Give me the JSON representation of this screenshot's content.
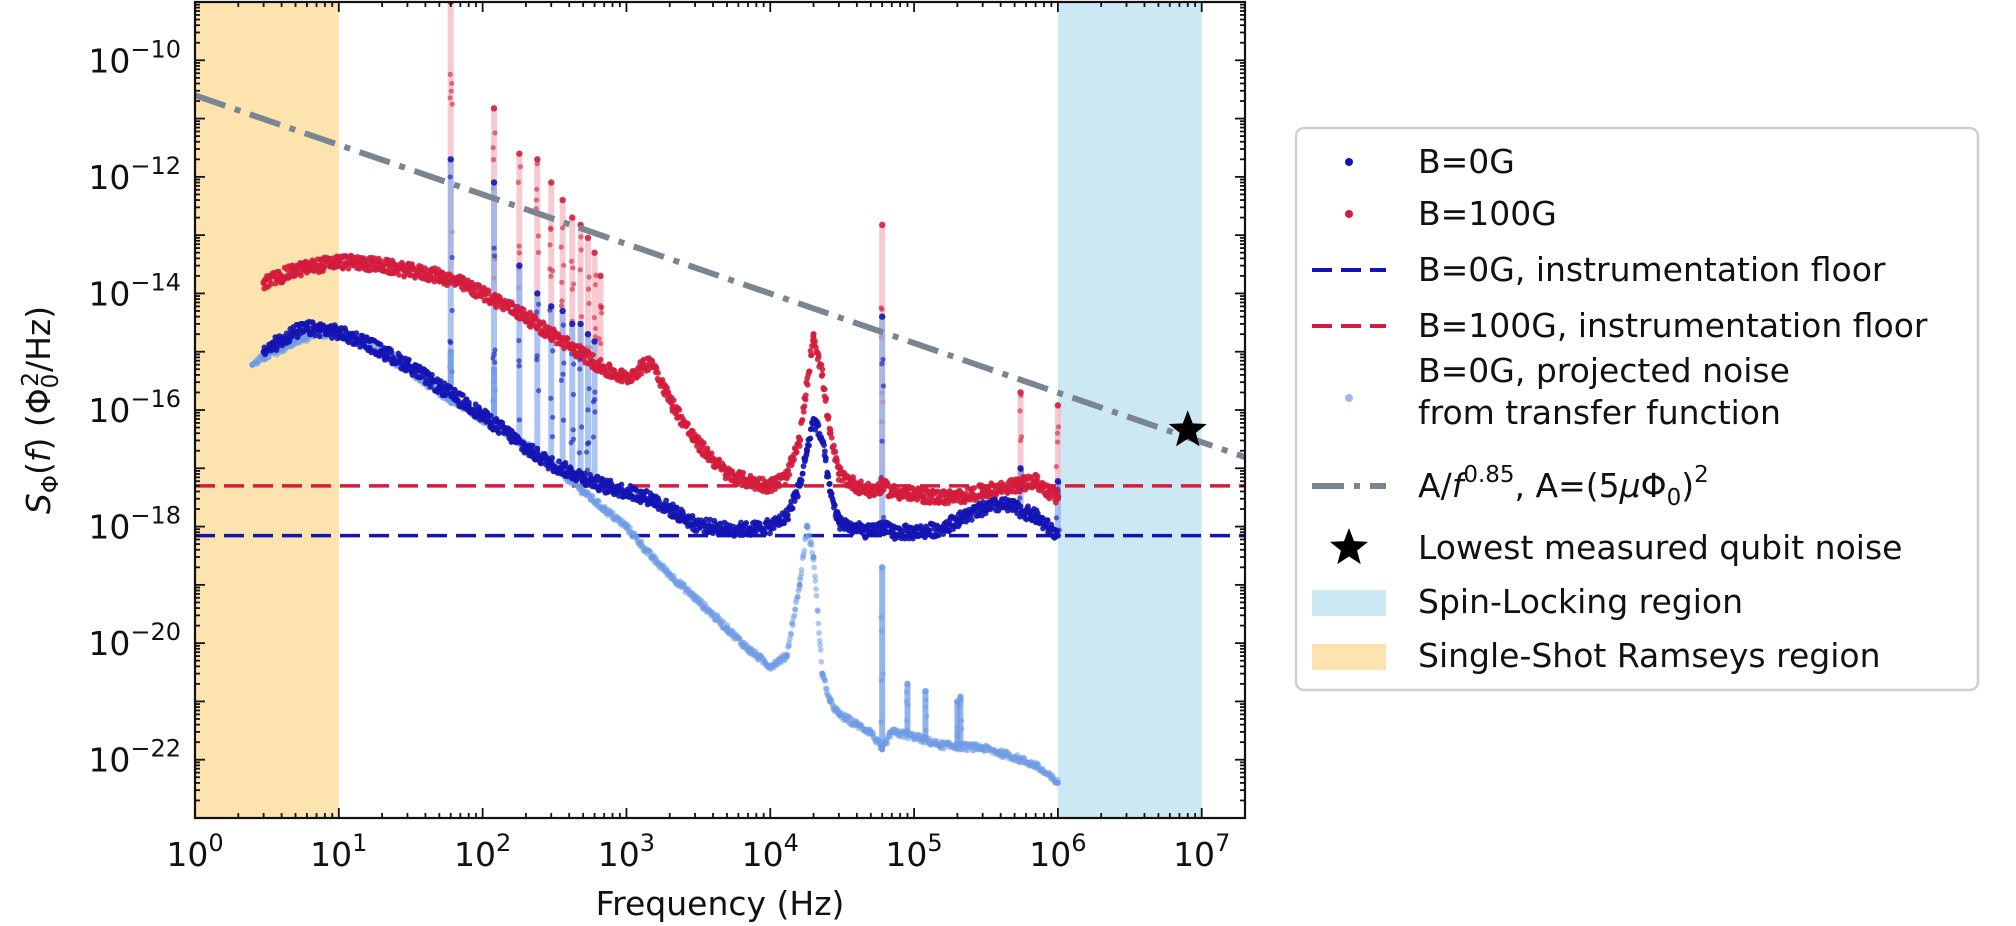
{
  "chart_data": {
    "type": "scatter",
    "title": "",
    "xlabel": "Frequency (Hz)",
    "ylabel": "S_Φ(f) (Φ_0^2/Hz)",
    "xscale": "log",
    "yscale": "log",
    "xlim": [
      1,
      20000000
    ],
    "ylim": [
      1e-23,
      1e-09
    ],
    "grid": false,
    "legend_position": "right-outside",
    "x_tick_labels": [
      {
        "value": 1,
        "label": "10",
        "exp": "0"
      },
      {
        "value": 10,
        "label": "10",
        "exp": "1"
      },
      {
        "value": 100,
        "label": "10",
        "exp": "2"
      },
      {
        "value": 1000,
        "label": "10",
        "exp": "3"
      },
      {
        "value": 10000,
        "label": "10",
        "exp": "4"
      },
      {
        "value": 100000,
        "label": "10",
        "exp": "5"
      },
      {
        "value": 1000000,
        "label": "10",
        "exp": "6"
      },
      {
        "value": 10000000,
        "label": "10",
        "exp": "7"
      }
    ],
    "y_tick_labels": [
      {
        "value": 1e-10,
        "label": "10",
        "exp": "−10"
      },
      {
        "value": 1e-12,
        "label": "10",
        "exp": "−12"
      },
      {
        "value": 1e-14,
        "label": "10",
        "exp": "−14"
      },
      {
        "value": 1e-16,
        "label": "10",
        "exp": "−16"
      },
      {
        "value": 1e-18,
        "label": "10",
        "exp": "−18"
      },
      {
        "value": 1e-20,
        "label": "10",
        "exp": "−20"
      },
      {
        "value": 1e-22,
        "label": "10",
        "exp": "−22"
      }
    ],
    "regions": [
      {
        "name": "Single-Shot Ramseys region",
        "x": [
          1,
          10
        ],
        "color": "#fde3ad"
      },
      {
        "name": "Spin-Locking region",
        "x": [
          1000000,
          10000000
        ],
        "color": "#cde8f5"
      }
    ],
    "colors": {
      "b0": "#1414b4",
      "b100": "#d41c3c",
      "projected": "#6f9be6",
      "fit": "#7a8591",
      "b100_spike": "#f4b8c2",
      "b0_spike": "#8fb0ec"
    },
    "series": [
      {
        "name": "B=0G",
        "style": "points",
        "x": [
          3,
          4,
          5,
          6,
          8,
          10,
          15,
          20,
          30,
          50,
          80,
          100,
          150,
          200,
          300,
          500,
          700,
          1000,
          1500,
          2000,
          3000,
          5000,
          7000,
          10000,
          13000,
          16000,
          18000,
          20000,
          23000,
          26000,
          30000,
          40000,
          50000,
          60000,
          70000,
          100000,
          150000,
          200000,
          300000,
          400000,
          500000,
          700000,
          1000000
        ],
        "y": [
          1e-15,
          1.6e-15,
          2.2e-15,
          2.5e-15,
          2.4e-15,
          2.1e-15,
          1.5e-15,
          1e-15,
          6e-16,
          2.5e-16,
          1.2e-16,
          8e-17,
          4e-17,
          2.2e-17,
          1.2e-17,
          7e-18,
          5e-18,
          4e-18,
          3e-18,
          2e-18,
          1.1e-18,
          9e-19,
          9e-19,
          1e-18,
          1.5e-18,
          5e-18,
          2e-17,
          7e-17,
          3e-17,
          4e-18,
          1.2e-18,
          9e-19,
          8e-19,
          1e-18,
          8e-19,
          8e-19,
          9e-19,
          1.3e-18,
          2e-18,
          2.4e-18,
          2.1e-18,
          1.5e-18,
          7e-19
        ]
      },
      {
        "name": "B=100G",
        "style": "points",
        "x": [
          3,
          4,
          5,
          7,
          10,
          15,
          20,
          30,
          50,
          70,
          100,
          150,
          200,
          300,
          500,
          700,
          1000,
          1500,
          2000,
          3000,
          5000,
          7000,
          10000,
          13000,
          16000,
          20000,
          23000,
          26000,
          30000,
          40000,
          50000,
          60000,
          70000,
          100000,
          150000,
          200000,
          300000,
          500000,
          700000,
          1000000
        ],
        "y": [
          1.5e-14,
          2e-14,
          2.5e-14,
          3e-14,
          3.5e-14,
          3.3e-14,
          3e-14,
          2.5e-14,
          2e-14,
          1.5e-14,
          1e-14,
          6e-15,
          4e-15,
          2e-15,
          9e-16,
          5e-16,
          3.5e-16,
          7e-16,
          1.5e-16,
          3e-17,
          8e-18,
          6e-18,
          5e-18,
          7e-18,
          3e-17,
          2e-15,
          4e-16,
          4e-17,
          8e-18,
          5e-18,
          4e-18,
          5e-18,
          4e-18,
          3.5e-18,
          3.2e-18,
          3.2e-18,
          4e-18,
          5e-18,
          6e-18,
          3e-18
        ]
      },
      {
        "name": "B=0G, projected noise\nfrom transfer function",
        "style": "points",
        "x": [
          2.5,
          3,
          4,
          5,
          7,
          10,
          15,
          20,
          30,
          50,
          100,
          200,
          300,
          500,
          700,
          1000,
          1500,
          2000,
          3000,
          5000,
          7000,
          10000,
          13000,
          16000,
          18000,
          20000,
          23000,
          26000,
          30000,
          40000,
          50000,
          60000,
          70000,
          100000,
          150000,
          200000,
          300000,
          500000,
          700000,
          1000000
        ],
        "y": [
          6e-16,
          8e-16,
          1.1e-15,
          1.5e-15,
          2e-15,
          2e-15,
          1.4e-15,
          9e-16,
          5e-16,
          2e-16,
          7e-17,
          2.5e-17,
          1.2e-17,
          4e-18,
          2e-18,
          1e-18,
          3e-19,
          1.5e-19,
          6e-20,
          1.8e-20,
          8e-21,
          4e-21,
          6e-21,
          1e-19,
          1e-18,
          3e-19,
          3e-21,
          1e-21,
          6e-22,
          4e-22,
          3e-22,
          1.5e-22,
          3e-22,
          2.5e-22,
          1.8e-22,
          1.7e-22,
          1.6e-22,
          1.1e-22,
          8e-23,
          4e-23
        ]
      },
      {
        "name": "B=0G, instrumentation floor",
        "style": "hline",
        "y": 7e-19
      },
      {
        "name": "B=100G, instrumentation floor",
        "style": "hline",
        "y": 5e-18
      },
      {
        "name": "A/f^0.85, A=(5μΦ_0)^2",
        "style": "fit",
        "A": 2.5e-11,
        "exponent": 0.85
      },
      {
        "name": "Lowest measured qubit noise",
        "style": "star",
        "x": [
          8000000
        ],
        "y": [
          4.5e-17
        ]
      }
    ],
    "spikes": [
      {
        "series": "B=100G",
        "x": [
          60,
          120,
          180,
          240,
          300,
          360,
          420,
          480,
          540,
          600,
          660,
          60000,
          550000,
          1000000
        ],
        "y": [
          1e-09,
          1.5e-11,
          2.5e-12,
          2e-12,
          8e-13,
          4e-13,
          2e-13,
          1.5e-13,
          9e-14,
          5e-14,
          2e-14,
          1.5e-13,
          2e-16,
          1.2e-16
        ]
      },
      {
        "series": "B=0G",
        "x": [
          60,
          120,
          180,
          240,
          300,
          360,
          420,
          480,
          540,
          600,
          60000,
          550000,
          1000000
        ],
        "y": [
          2e-12,
          8e-13,
          3e-14,
          1e-14,
          6e-15,
          5e-15,
          3e-15,
          3e-15,
          2e-15,
          1.5e-15,
          4e-15,
          1e-17,
          6e-18
        ]
      },
      {
        "series": "B=0G, projected noise\nfrom transfer function",
        "x": [
          60,
          120,
          60000,
          90000,
          120000,
          200000,
          210000
        ],
        "y": [
          1e-15,
          5e-16,
          2e-19,
          2e-21,
          1.5e-21,
          1e-21,
          1.2e-21
        ]
      }
    ],
    "legend": [
      {
        "label": "B=0G",
        "type": "point"
      },
      {
        "label": "B=100G",
        "type": "point"
      },
      {
        "label": "B=0G, instrumentation floor",
        "type": "dash"
      },
      {
        "label": "B=100G, instrumentation floor",
        "type": "dash"
      },
      {
        "label": "B=0G, projected noise",
        "label2": "from transfer function",
        "type": "point-light"
      },
      {
        "label": "A/",
        "label_f": "f",
        "label_exp": "0.85",
        "label_rest": ", A=(5",
        "label_mu": "μ",
        "label_phi": "Φ",
        "label_sub": "0",
        "label_close": ")",
        "label_sq": "2",
        "type": "dashdot"
      },
      {
        "label": "Lowest measured qubit noise",
        "type": "star"
      },
      {
        "label": "Spin-Locking region",
        "type": "patch-blue"
      },
      {
        "label": "Single-Shot Ramseys region",
        "type": "patch-orange"
      }
    ]
  }
}
